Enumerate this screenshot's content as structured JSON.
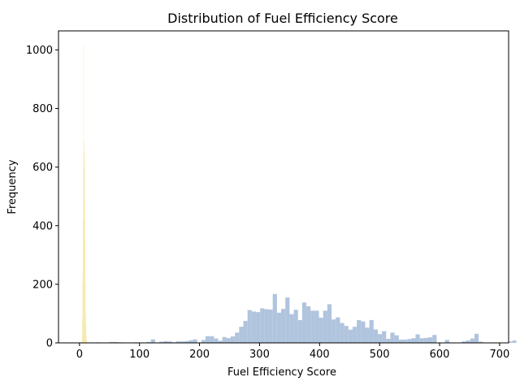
{
  "chart_data": {
    "type": "bar",
    "title": "Distribution of Fuel Efficiency Score",
    "xlabel": "Fuel Efficiency Score",
    "ylabel": "Frequency",
    "xlim": [
      -35,
      715
    ],
    "ylim": [
      0,
      1065
    ],
    "xticks": [
      0,
      100,
      200,
      300,
      400,
      500,
      600,
      700
    ],
    "yticks": [
      0,
      200,
      400,
      600,
      800,
      1000
    ],
    "grid": false,
    "legend": "none",
    "series": [
      {
        "color": "#b0c4de",
        "bin_width": 7,
        "bin_start": 0,
        "values": [
          0,
          0,
          0,
          0,
          2,
          0,
          0,
          3,
          3,
          2,
          1,
          0,
          1,
          2,
          0,
          0,
          3,
          12,
          0,
          4,
          6,
          5,
          2,
          5,
          5,
          6,
          9,
          12,
          1,
          10,
          23,
          23,
          15,
          7,
          20,
          16,
          22,
          35,
          55,
          75,
          112,
          107,
          105,
          118,
          115,
          114,
          167,
          103,
          116,
          155,
          98,
          113,
          78,
          138,
          125,
          110,
          110,
          86,
          110,
          132,
          80,
          87,
          68,
          58,
          45,
          55,
          78,
          73,
          52,
          78,
          46,
          30,
          40,
          14,
          35,
          26,
          11,
          11,
          13,
          16,
          29,
          16,
          17,
          19,
          27,
          0,
          0,
          10,
          0,
          0,
          0,
          5,
          8,
          15,
          31,
          4,
          0,
          0,
          0,
          0,
          0,
          0,
          5,
          8,
          0
        ]
      },
      {
        "color": "#f5e6a3",
        "bin_width": 0.5,
        "bin_start": 1.5,
        "values": [
          0,
          0,
          0,
          0,
          5,
          20,
          80,
          220,
          420,
          600,
          1015,
          650,
          685,
          640,
          480,
          350,
          200,
          95,
          60,
          25,
          8
        ]
      }
    ]
  }
}
